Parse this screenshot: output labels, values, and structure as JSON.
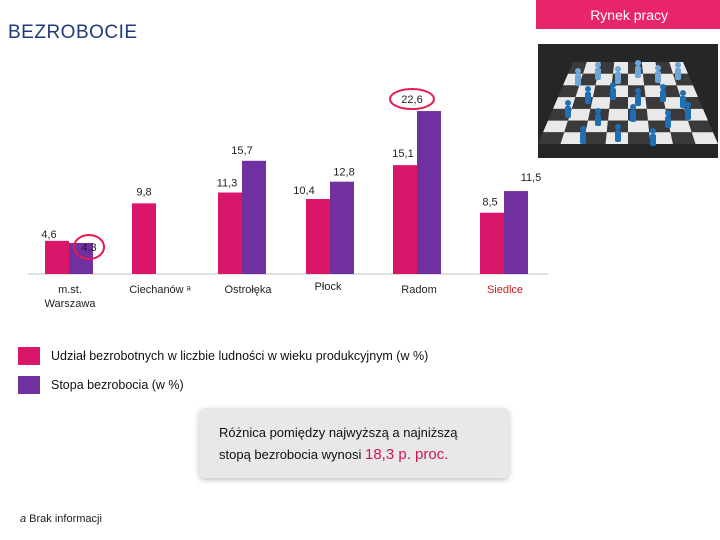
{
  "header": {
    "title": "BEZROBOCIE",
    "badge": "Rynek pracy"
  },
  "colors": {
    "pink": "#d9166a",
    "purple": "#7030a0",
    "badge": "#e8246b",
    "highlight_circle": "#e8194f",
    "title": "#1f3a7a",
    "siedlce_label": "#d11b1b"
  },
  "illustration": {
    "icon": "chessboard-people-image"
  },
  "chart_data": {
    "type": "bar",
    "categories": [
      "m.st. Warszawa",
      "Ciechanów ᵃ",
      "Ostrołęka",
      "Płock",
      "Radom",
      "Siedlce"
    ],
    "series": [
      {
        "name": "Udział bezrobotnych w liczbie ludności w wieku produkcyjnym (w %)",
        "values": [
          4.6,
          9.8,
          11.3,
          10.4,
          15.1,
          8.5
        ],
        "labels": [
          "4,6",
          "9,8",
          "11,3",
          "10,4",
          "15,1",
          "8,5"
        ]
      },
      {
        "name": "Stopa bezrobocia (w %)",
        "values": [
          4.3,
          null,
          15.7,
          12.8,
          22.6,
          11.5
        ],
        "labels": [
          "4,3",
          "",
          "15,7",
          "12,8",
          "22,6",
          "11,5"
        ]
      }
    ],
    "ylim": [
      0,
      25
    ],
    "grid": false,
    "legend": "bottom",
    "highlighted": [
      "4,3",
      "22,6"
    ]
  },
  "legend": {
    "s1": "Udział bezrobotnych w liczbie ludności w wieku produkcyjnym (w %)",
    "s2": "Stopa bezrobocia (w %)"
  },
  "info": {
    "line1": "Różnica pomiędzy najwyższą a najniższą",
    "line2": "stopą bezrobocia wynosi",
    "value": "18,3 p. proc."
  },
  "footnote": {
    "mark": "a",
    "text": " Brak informacji"
  }
}
